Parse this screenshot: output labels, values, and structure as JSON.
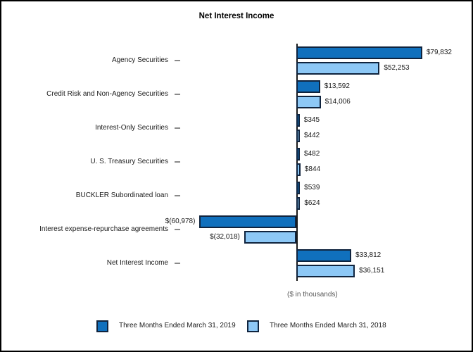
{
  "chart_data": {
    "type": "bar",
    "orientation": "horizontal",
    "title": "Net Interest Income",
    "footnote": "($ in thousands)",
    "unit": "USD thousands",
    "legend_position": "bottom",
    "value_axis_hidden": true,
    "categories": [
      "Agency Securities",
      "Credit Risk and Non-Agency Securities",
      "Interest-Only Securities",
      "U. S. Treasury Securities",
      "BUCKLER Subordinated loan",
      "Interest expense-repurchase agreements",
      "Net Interest Income"
    ],
    "series": [
      {
        "name": "Three Months Ended March 31, 2019",
        "color": "#1070BD",
        "values": [
          79832,
          13592,
          345,
          482,
          539,
          -60978,
          33812
        ],
        "labels": [
          "$79,832",
          "$13,592",
          "$345",
          "$482",
          "$539",
          "$(60,978)",
          "$33,812"
        ]
      },
      {
        "name": "Three Months Ended March 31, 2018",
        "color": "#8DC8F6",
        "values": [
          52253,
          14006,
          442,
          844,
          624,
          -32018,
          36151
        ],
        "labels": [
          "$52,253",
          "$14,006",
          "$442",
          "$844",
          "$624",
          "$(32,018)",
          "$36,151"
        ]
      }
    ],
    "styles": {
      "bar_border": "#10243E",
      "axis_line": "#1a1a1a",
      "tick_color": "#8a8a8a",
      "footnote_color": "#595959",
      "text_color": "#1a1a1a",
      "background": "#ffffff",
      "frame_border": "#000000"
    }
  }
}
